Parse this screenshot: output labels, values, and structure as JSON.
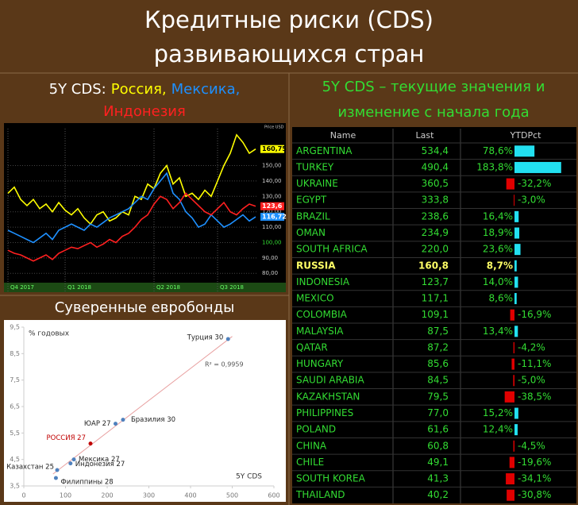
{
  "title": [
    "Кредитные риски (CDS)",
    "развивающихся стран"
  ],
  "chart_data": [
    {
      "type": "line",
      "title": "5Y CDS:",
      "ylabel": "Price USD",
      "categories": [
        "Q4 2017",
        null,
        null,
        null,
        null,
        null,
        null,
        null,
        null,
        "Q1 2018",
        null,
        null,
        null,
        null,
        null,
        null,
        null,
        null,
        null,
        null,
        null,
        null,
        null,
        "Q2 2018",
        null,
        null,
        null,
        null,
        null,
        null,
        null,
        null,
        null,
        "Q3 2018",
        null,
        null,
        null,
        null,
        null,
        null
      ],
      "series": [
        {
          "name": "Россия,",
          "color": "#ffff00",
          "values": [
            132,
            136,
            128,
            124,
            128,
            122,
            125,
            120,
            126,
            121,
            118,
            122,
            116,
            112,
            118,
            120,
            114,
            116,
            120,
            118,
            130,
            128,
            138,
            135,
            145,
            150,
            138,
            142,
            130,
            132,
            128,
            134,
            130,
            140,
            150,
            158,
            170,
            165,
            158,
            160.75
          ],
          "value_labels": [
            null,
            null,
            null,
            null,
            null,
            null,
            null,
            null,
            null,
            null,
            null,
            null,
            null,
            null,
            null,
            null,
            null,
            null,
            null,
            null,
            null,
            null,
            null,
            null,
            null,
            null,
            null,
            null,
            null,
            null,
            null,
            null,
            null,
            null,
            null,
            null,
            null,
            null,
            null,
            "160,75"
          ]
        },
        {
          "name": "Мексика,",
          "color": "#1e90ff",
          "values": [
            108,
            106,
            104,
            102,
            100,
            103,
            106,
            102,
            108,
            110,
            112,
            110,
            108,
            112,
            110,
            113,
            116,
            118,
            120,
            122,
            126,
            130,
            128,
            135,
            140,
            145,
            132,
            128,
            120,
            116,
            110,
            112,
            118,
            114,
            110,
            112,
            115,
            118,
            114,
            116.72
          ],
          "value_labels": [
            null,
            null,
            null,
            null,
            null,
            null,
            null,
            null,
            null,
            null,
            null,
            null,
            null,
            null,
            null,
            null,
            null,
            null,
            null,
            null,
            null,
            null,
            null,
            null,
            null,
            null,
            null,
            null,
            null,
            null,
            null,
            null,
            null,
            null,
            null,
            null,
            null,
            null,
            null,
            "116,72"
          ]
        },
        {
          "name": "Индонезия",
          "color": "#ff2020",
          "values": [
            95,
            93,
            92,
            90,
            88,
            90,
            92,
            89,
            93,
            95,
            97,
            96,
            98,
            100,
            97,
            99,
            102,
            100,
            104,
            106,
            110,
            115,
            118,
            125,
            130,
            128,
            122,
            126,
            132,
            128,
            124,
            120,
            118,
            122,
            126,
            120,
            118,
            122,
            125,
            123.6
          ],
          "value_labels": [
            null,
            null,
            null,
            null,
            null,
            null,
            null,
            null,
            null,
            null,
            null,
            null,
            null,
            null,
            null,
            null,
            null,
            null,
            null,
            null,
            null,
            null,
            null,
            null,
            null,
            null,
            null,
            null,
            null,
            null,
            null,
            null,
            null,
            null,
            null,
            null,
            null,
            null,
            null,
            "123,6"
          ]
        }
      ],
      "ylim": [
        76,
        174
      ],
      "yticks": [
        {
          "value": 80,
          "label": "80,00"
        },
        {
          "value": 90,
          "label": "90,00"
        },
        {
          "value": 100,
          "label": "100,00"
        },
        {
          "value": 110,
          "label": "110,00"
        },
        {
          "value": 120,
          "label": "120,00"
        },
        {
          "value": 130,
          "label": "130,00"
        },
        {
          "value": 140,
          "label": "140,00"
        },
        {
          "value": 150,
          "label": "150,00"
        }
      ],
      "grid": true
    },
    {
      "type": "scatter",
      "title": "Суверенные евробонды",
      "ylabel": "% годовых",
      "xlabel": "5Y CDS",
      "annotation": "R² = 0,9959",
      "points": [
        {
          "label": "Турция 30",
          "x": 490,
          "y": 9.05,
          "color": "#4f81bd"
        },
        {
          "label": "Бразилия 30",
          "x": 238,
          "y": 6.0,
          "color": "#4f81bd"
        },
        {
          "label": "ЮАР 27",
          "x": 220,
          "y": 5.85,
          "color": "#4f81bd"
        },
        {
          "label": "РОССИЯ 27",
          "x": 160,
          "y": 5.1,
          "color": "#c00000"
        },
        {
          "label": "Мексика 27",
          "x": 120,
          "y": 4.5,
          "color": "#4f81bd"
        },
        {
          "label": "Индонезия 27",
          "x": 112,
          "y": 4.35,
          "color": "#4f81bd"
        },
        {
          "label": "Казахстан 25",
          "x": 80,
          "y": 4.1,
          "color": "#4f81bd"
        },
        {
          "label": "Филиппины 28",
          "x": 77,
          "y": 3.8,
          "color": "#4f81bd"
        }
      ],
      "trendline": {
        "x": [
          70,
          500
        ],
        "y": [
          3.95,
          9.15
        ],
        "color": "#e8a0a0"
      },
      "xlim": [
        0,
        600
      ],
      "xticks": [
        0,
        100,
        200,
        300,
        400,
        500,
        600
      ],
      "ylim": [
        3.5,
        9.5
      ],
      "yticks": [
        {
          "value": 3.5,
          "label": "3,5"
        },
        {
          "value": 4.5,
          "label": "4,5"
        },
        {
          "value": 5.5,
          "label": "5,5"
        },
        {
          "value": 6.5,
          "label": "6,5"
        },
        {
          "value": 7.5,
          "label": "7,5"
        },
        {
          "value": 8.5,
          "label": "8,5"
        },
        {
          "value": 9.5,
          "label": "9,5"
        }
      ]
    }
  ],
  "table": {
    "title": [
      "5Y CDS – текущие значения и",
      "изменение с начала года"
    ],
    "columns": [
      "Name",
      "Last",
      "YTDPct"
    ],
    "highlight_row": 7,
    "rows": [
      {
        "name": "ARGENTINA",
        "last": "534,4",
        "ytd": 78.6,
        "ytd_label": "78,6%"
      },
      {
        "name": "TURKEY",
        "last": "490,4",
        "ytd": 183.8,
        "ytd_label": "183,8%"
      },
      {
        "name": "UKRAINE",
        "last": "360,5",
        "ytd": -32.2,
        "ytd_label": "-32,2%"
      },
      {
        "name": "EGYPT",
        "last": "333,8",
        "ytd": -3.0,
        "ytd_label": "-3,0%"
      },
      {
        "name": "BRAZIL",
        "last": "238,6",
        "ytd": 16.4,
        "ytd_label": "16,4%"
      },
      {
        "name": "OMAN",
        "last": "234,9",
        "ytd": 18.9,
        "ytd_label": "18,9%"
      },
      {
        "name": "SOUTH AFRICA",
        "last": "220,0",
        "ytd": 23.6,
        "ytd_label": "23,6%"
      },
      {
        "name": "RUSSIA",
        "last": "160,8",
        "ytd": 8.7,
        "ytd_label": "8,7%"
      },
      {
        "name": "INDONESIA",
        "last": "123,7",
        "ytd": 14.0,
        "ytd_label": "14,0%"
      },
      {
        "name": "MEXICO",
        "last": "117,1",
        "ytd": 8.6,
        "ytd_label": "8,6%"
      },
      {
        "name": "COLOMBIA",
        "last": "109,1",
        "ytd": -16.9,
        "ytd_label": "-16,9%"
      },
      {
        "name": "MALAYSIA",
        "last": "87,5",
        "ytd": 13.4,
        "ytd_label": "13,4%"
      },
      {
        "name": "QATAR",
        "last": "87,2",
        "ytd": -4.2,
        "ytd_label": "-4,2%"
      },
      {
        "name": "HUNGARY",
        "last": "85,6",
        "ytd": -11.1,
        "ytd_label": "-11,1%"
      },
      {
        "name": "SAUDI ARABIA",
        "last": "84,5",
        "ytd": -5.0,
        "ytd_label": "-5,0%"
      },
      {
        "name": "KAZAKHSTAN",
        "last": "79,5",
        "ytd": -38.5,
        "ytd_label": "-38,5%"
      },
      {
        "name": "PHILIPPINES",
        "last": "77,0",
        "ytd": 15.2,
        "ytd_label": "15,2%"
      },
      {
        "name": "POLAND",
        "last": "61,6",
        "ytd": 12.4,
        "ytd_label": "12,4%"
      },
      {
        "name": "CHINA",
        "last": "60,8",
        "ytd": -4.5,
        "ytd_label": "-4,5%"
      },
      {
        "name": "CHILE",
        "last": "49,1",
        "ytd": -19.6,
        "ytd_label": "-19,6%"
      },
      {
        "name": "SOUTH KOREA",
        "last": "41,3",
        "ytd": -34.1,
        "ytd_label": "-34,1%"
      },
      {
        "name": "THAILAND",
        "last": "40,2",
        "ytd": -30.8,
        "ytd_label": "-30,8%"
      }
    ]
  }
}
